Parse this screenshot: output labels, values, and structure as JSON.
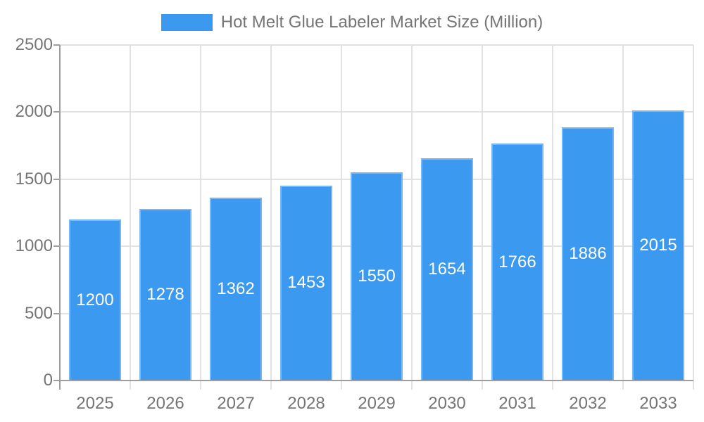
{
  "legend": {
    "label": "Hot Melt Glue Labeler Market Size (Million)"
  },
  "colors": {
    "bar": "#3B99F0",
    "grid": "#E2E2E2",
    "axis": "#9E9E9E",
    "tick_text": "#757575",
    "value_label_text": "#FFFFFF",
    "background": "#FFFFFF"
  },
  "chart_data": {
    "type": "bar",
    "title": "Hot Melt Glue Labeler Market Size (Million)",
    "categories": [
      "2025",
      "2026",
      "2027",
      "2028",
      "2029",
      "2030",
      "2031",
      "2032",
      "2033"
    ],
    "values": [
      1200,
      1278,
      1362,
      1453,
      1550,
      1654,
      1766,
      1886,
      2015
    ],
    "value_labels_position": "inside-center",
    "xlabel": "",
    "ylabel": "",
    "ylim": [
      0,
      2500
    ],
    "yticks": [
      0,
      500,
      1000,
      1500,
      2000,
      2500
    ],
    "grid": true,
    "legend_position": "top-center",
    "bar_color": "#3B99F0"
  }
}
